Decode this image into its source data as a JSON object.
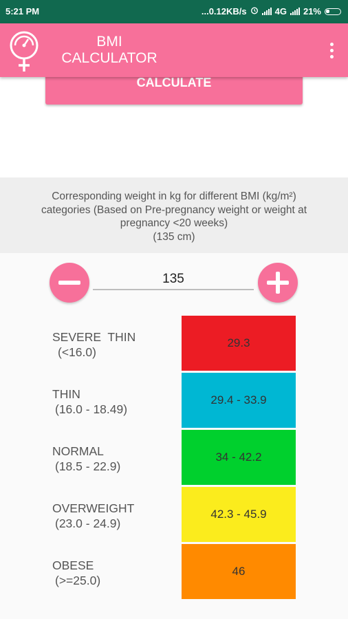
{
  "status_bar": {
    "time": "5:21 PM",
    "indicators": "...0.12KB/s",
    "network": "4G",
    "battery": "21%"
  },
  "app_bar": {
    "title_line1": "BMI",
    "title_line2": "CALCULATOR",
    "logo_icon": "scale-venus-icon",
    "menu_icon": "more-vert-icon"
  },
  "calculate_label": "CALCULATE",
  "info": {
    "line1": "Corresponding weight in kg for different BMI (kg/m²)",
    "line2": "categories (Based on Pre-pregnancy weight or weight at",
    "line3": "pregnancy <20 weeks)",
    "line4": "(135 cm)"
  },
  "height_input": {
    "value": "135"
  },
  "categories": [
    {
      "name": "SEVERE  THIN",
      "range": "(<16.0)",
      "weight": "29.3",
      "color": "#ec1c24"
    },
    {
      "name": "THIN",
      "range": "(16.0 - 18.49)",
      "weight": "29.4 - 33.9",
      "color": "#00b7d3"
    },
    {
      "name": "NORMAL",
      "range": "(18.5 - 22.9)",
      "weight": "34 - 42.2",
      "color": "#00d02d"
    },
    {
      "name": "OVERWEIGHT",
      "range": "(23.0 - 24.9)",
      "weight": "42.3 - 45.9",
      "color": "#fbec1d"
    },
    {
      "name": "OBESE",
      "range": "(>=25.0)",
      "weight": "46",
      "color": "#ff8a00"
    }
  ],
  "colors": {
    "accent": "#f7709a",
    "status_bar": "#11694f"
  }
}
